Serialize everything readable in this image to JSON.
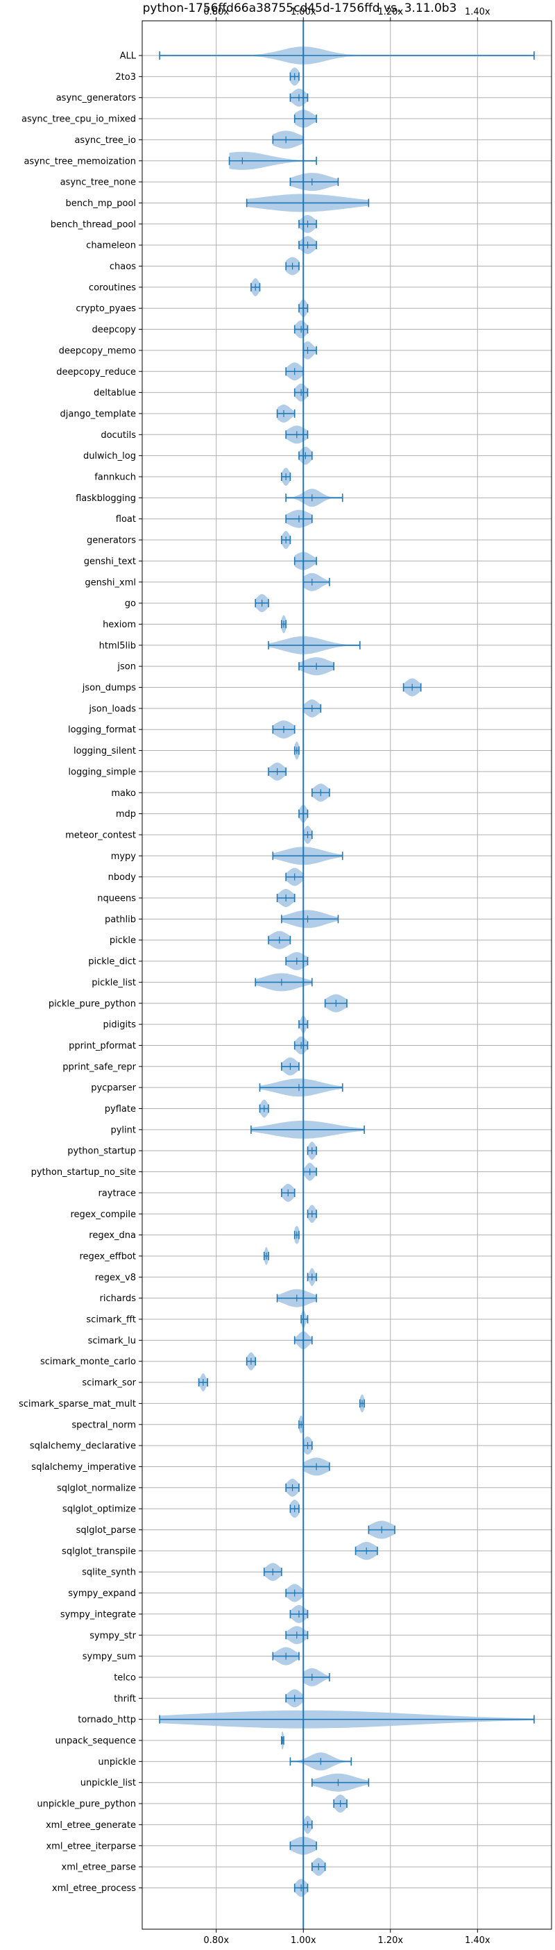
{
  "chart_data": {
    "type": "violin",
    "orientation": "horizontal",
    "title": "python-1756ffd66a38755cd45d-1756ffd vs. 3.11.0b3",
    "xlabel": "",
    "ylabel": "",
    "xlim": [
      0.63,
      1.57
    ],
    "x_ticks": [
      0.8,
      1.0,
      1.2,
      1.4
    ],
    "x_tick_labels": [
      "0.80x",
      "1.00x",
      "1.20x",
      "1.40x"
    ],
    "x_ticks_top_and_bottom": true,
    "grid": true,
    "reference_line_x": 1.0,
    "colors": {
      "violin_fill": "#a9c8e4",
      "line": "#1f77b4",
      "grid": "#b0b0b0"
    },
    "benchmarks": [
      {
        "name": "ALL",
        "min": 0.67,
        "max": 1.53,
        "median": 1.0,
        "spread": 0.05
      },
      {
        "name": "2to3",
        "min": 0.97,
        "max": 0.99,
        "median": 0.98,
        "spread": 0.01
      },
      {
        "name": "async_generators",
        "min": 0.97,
        "max": 1.01,
        "median": 0.99,
        "spread": 0.015
      },
      {
        "name": "async_tree_cpu_io_mixed",
        "min": 0.98,
        "max": 1.03,
        "median": 1.0,
        "spread": 0.02
      },
      {
        "name": "async_tree_io",
        "min": 0.93,
        "max": 1.0,
        "median": 0.96,
        "spread": 0.03
      },
      {
        "name": "async_tree_memoization",
        "min": 0.83,
        "max": 1.03,
        "median": 0.86,
        "spread": 0.06
      },
      {
        "name": "async_tree_none",
        "min": 0.97,
        "max": 1.08,
        "median": 1.02,
        "spread": 0.04
      },
      {
        "name": "bench_mp_pool",
        "min": 0.87,
        "max": 1.15,
        "median": 1.0,
        "spread": 0.1
      },
      {
        "name": "bench_thread_pool",
        "min": 0.99,
        "max": 1.03,
        "median": 1.01,
        "spread": 0.015
      },
      {
        "name": "chameleon",
        "min": 0.99,
        "max": 1.03,
        "median": 1.01,
        "spread": 0.015
      },
      {
        "name": "chaos",
        "min": 0.96,
        "max": 0.99,
        "median": 0.975,
        "spread": 0.015
      },
      {
        "name": "coroutines",
        "min": 0.88,
        "max": 0.9,
        "median": 0.89,
        "spread": 0.008
      },
      {
        "name": "crypto_pyaes",
        "min": 0.99,
        "max": 1.01,
        "median": 1.0,
        "spread": 0.008
      },
      {
        "name": "deepcopy",
        "min": 0.98,
        "max": 1.01,
        "median": 0.995,
        "spread": 0.012
      },
      {
        "name": "deepcopy_memo",
        "min": 1.0,
        "max": 1.03,
        "median": 1.01,
        "spread": 0.012
      },
      {
        "name": "deepcopy_reduce",
        "min": 0.96,
        "max": 1.0,
        "median": 0.98,
        "spread": 0.015
      },
      {
        "name": "deltablue",
        "min": 0.98,
        "max": 1.01,
        "median": 0.995,
        "spread": 0.012
      },
      {
        "name": "django_template",
        "min": 0.94,
        "max": 0.98,
        "median": 0.955,
        "spread": 0.015
      },
      {
        "name": "docutils",
        "min": 0.96,
        "max": 1.01,
        "median": 0.985,
        "spread": 0.02
      },
      {
        "name": "dulwich_log",
        "min": 0.99,
        "max": 1.02,
        "median": 1.005,
        "spread": 0.012
      },
      {
        "name": "fannkuch",
        "min": 0.95,
        "max": 0.97,
        "median": 0.96,
        "spread": 0.008
      },
      {
        "name": "flaskblogging",
        "min": 0.96,
        "max": 1.09,
        "median": 1.02,
        "spread": 0.02
      },
      {
        "name": "float",
        "min": 0.96,
        "max": 1.02,
        "median": 0.99,
        "spread": 0.025
      },
      {
        "name": "generators",
        "min": 0.95,
        "max": 0.97,
        "median": 0.96,
        "spread": 0.008
      },
      {
        "name": "genshi_text",
        "min": 0.98,
        "max": 1.03,
        "median": 1.0,
        "spread": 0.02
      },
      {
        "name": "genshi_xml",
        "min": 1.0,
        "max": 1.06,
        "median": 1.02,
        "spread": 0.02
      },
      {
        "name": "go",
        "min": 0.89,
        "max": 0.92,
        "median": 0.905,
        "spread": 0.012
      },
      {
        "name": "hexiom",
        "min": 0.95,
        "max": 0.96,
        "median": 0.955,
        "spread": 0.005
      },
      {
        "name": "html5lib",
        "min": 0.92,
        "max": 1.13,
        "median": 1.0,
        "spread": 0.045
      },
      {
        "name": "json",
        "min": 0.99,
        "max": 1.07,
        "median": 1.03,
        "spread": 0.03
      },
      {
        "name": "json_dumps",
        "min": 1.23,
        "max": 1.27,
        "median": 1.25,
        "spread": 0.015
      },
      {
        "name": "json_loads",
        "min": 1.0,
        "max": 1.04,
        "median": 1.02,
        "spread": 0.015
      },
      {
        "name": "logging_format",
        "min": 0.93,
        "max": 0.98,
        "median": 0.955,
        "spread": 0.02
      },
      {
        "name": "logging_silent",
        "min": 0.98,
        "max": 0.99,
        "median": 0.985,
        "spread": 0.005
      },
      {
        "name": "logging_simple",
        "min": 0.92,
        "max": 0.96,
        "median": 0.94,
        "spread": 0.015
      },
      {
        "name": "mako",
        "min": 1.02,
        "max": 1.06,
        "median": 1.04,
        "spread": 0.015
      },
      {
        "name": "mdp",
        "min": 0.99,
        "max": 1.01,
        "median": 1.0,
        "spread": 0.008
      },
      {
        "name": "meteor_contest",
        "min": 1.0,
        "max": 1.02,
        "median": 1.01,
        "spread": 0.008
      },
      {
        "name": "mypy",
        "min": 0.93,
        "max": 1.09,
        "median": 1.0,
        "spread": 0.045
      },
      {
        "name": "nbody",
        "min": 0.96,
        "max": 1.0,
        "median": 0.98,
        "spread": 0.015
      },
      {
        "name": "nqueens",
        "min": 0.94,
        "max": 0.98,
        "median": 0.96,
        "spread": 0.015
      },
      {
        "name": "pathlib",
        "min": 0.95,
        "max": 1.08,
        "median": 1.01,
        "spread": 0.04
      },
      {
        "name": "pickle",
        "min": 0.92,
        "max": 0.97,
        "median": 0.945,
        "spread": 0.02
      },
      {
        "name": "pickle_dict",
        "min": 0.96,
        "max": 1.01,
        "median": 0.985,
        "spread": 0.02
      },
      {
        "name": "pickle_list",
        "min": 0.89,
        "max": 1.02,
        "median": 0.95,
        "spread": 0.04
      },
      {
        "name": "pickle_pure_python",
        "min": 1.05,
        "max": 1.1,
        "median": 1.075,
        "spread": 0.02
      },
      {
        "name": "pidigits",
        "min": 0.99,
        "max": 1.01,
        "median": 1.0,
        "spread": 0.006
      },
      {
        "name": "pprint_pformat",
        "min": 0.98,
        "max": 1.01,
        "median": 0.995,
        "spread": 0.012
      },
      {
        "name": "pprint_safe_repr",
        "min": 0.95,
        "max": 0.99,
        "median": 0.97,
        "spread": 0.015
      },
      {
        "name": "pycparser",
        "min": 0.9,
        "max": 1.09,
        "median": 0.99,
        "spread": 0.05
      },
      {
        "name": "pyflate",
        "min": 0.9,
        "max": 0.92,
        "median": 0.91,
        "spread": 0.008
      },
      {
        "name": "pylint",
        "min": 0.88,
        "max": 1.14,
        "median": 1.0,
        "spread": 0.07
      },
      {
        "name": "python_startup",
        "min": 1.01,
        "max": 1.03,
        "median": 1.02,
        "spread": 0.008
      },
      {
        "name": "python_startup_no_site",
        "min": 1.0,
        "max": 1.03,
        "median": 1.015,
        "spread": 0.01
      },
      {
        "name": "raytrace",
        "min": 0.95,
        "max": 0.98,
        "median": 0.965,
        "spread": 0.012
      },
      {
        "name": "regex_compile",
        "min": 1.01,
        "max": 1.03,
        "median": 1.02,
        "spread": 0.008
      },
      {
        "name": "regex_dna",
        "min": 0.98,
        "max": 0.99,
        "median": 0.985,
        "spread": 0.006
      },
      {
        "name": "regex_effbot",
        "min": 0.91,
        "max": 0.92,
        "median": 0.915,
        "spread": 0.004
      },
      {
        "name": "regex_v8",
        "min": 1.01,
        "max": 1.03,
        "median": 1.02,
        "spread": 0.006
      },
      {
        "name": "richards",
        "min": 0.94,
        "max": 1.03,
        "median": 0.985,
        "spread": 0.03
      },
      {
        "name": "scimark_fft",
        "min": 0.995,
        "max": 1.01,
        "median": 1.0,
        "spread": 0.005
      },
      {
        "name": "scimark_lu",
        "min": 0.98,
        "max": 1.02,
        "median": 1.0,
        "spread": 0.012
      },
      {
        "name": "scimark_monte_carlo",
        "min": 0.87,
        "max": 0.89,
        "median": 0.88,
        "spread": 0.008
      },
      {
        "name": "scimark_sor",
        "min": 0.76,
        "max": 0.78,
        "median": 0.77,
        "spread": 0.006
      },
      {
        "name": "scimark_sparse_mat_mult",
        "min": 1.13,
        "max": 1.14,
        "median": 1.135,
        "spread": 0.005
      },
      {
        "name": "spectral_norm",
        "min": 0.99,
        "max": 1.0,
        "median": 0.995,
        "spread": 0.005
      },
      {
        "name": "sqlalchemy_declarative",
        "min": 1.0,
        "max": 1.02,
        "median": 1.01,
        "spread": 0.01
      },
      {
        "name": "sqlalchemy_imperative",
        "min": 1.0,
        "max": 1.06,
        "median": 1.03,
        "spread": 0.025
      },
      {
        "name": "sqlglot_normalize",
        "min": 0.96,
        "max": 0.99,
        "median": 0.975,
        "spread": 0.012
      },
      {
        "name": "sqlglot_optimize",
        "min": 0.97,
        "max": 0.99,
        "median": 0.98,
        "spread": 0.01
      },
      {
        "name": "sqlglot_parse",
        "min": 1.15,
        "max": 1.21,
        "median": 1.18,
        "spread": 0.025
      },
      {
        "name": "sqlglot_transpile",
        "min": 1.12,
        "max": 1.17,
        "median": 1.145,
        "spread": 0.02
      },
      {
        "name": "sqlite_synth",
        "min": 0.91,
        "max": 0.95,
        "median": 0.93,
        "spread": 0.015
      },
      {
        "name": "sympy_expand",
        "min": 0.96,
        "max": 1.0,
        "median": 0.98,
        "spread": 0.015
      },
      {
        "name": "sympy_integrate",
        "min": 0.97,
        "max": 1.01,
        "median": 0.99,
        "spread": 0.015
      },
      {
        "name": "sympy_str",
        "min": 0.96,
        "max": 1.01,
        "median": 0.985,
        "spread": 0.018
      },
      {
        "name": "sympy_sum",
        "min": 0.93,
        "max": 0.99,
        "median": 0.96,
        "spread": 0.02
      },
      {
        "name": "telco",
        "min": 1.0,
        "max": 1.06,
        "median": 1.02,
        "spread": 0.02
      },
      {
        "name": "thrift",
        "min": 0.96,
        "max": 1.0,
        "median": 0.98,
        "spread": 0.015
      },
      {
        "name": "tornado_http",
        "min": 0.67,
        "max": 1.53,
        "median": 1.0,
        "spread": 0.25
      },
      {
        "name": "unpack_sequence",
        "min": 0.95,
        "max": 0.955,
        "median": 0.952,
        "spread": 0.003
      },
      {
        "name": "unpickle",
        "min": 0.97,
        "max": 1.11,
        "median": 1.04,
        "spread": 0.025
      },
      {
        "name": "unpickle_list",
        "min": 1.02,
        "max": 1.15,
        "median": 1.08,
        "spread": 0.04
      },
      {
        "name": "unpickle_pure_python",
        "min": 1.07,
        "max": 1.1,
        "median": 1.085,
        "spread": 0.012
      },
      {
        "name": "xml_etree_generate",
        "min": 1.0,
        "max": 1.02,
        "median": 1.01,
        "spread": 0.008
      },
      {
        "name": "xml_etree_iterparse",
        "min": 0.97,
        "max": 1.03,
        "median": 1.0,
        "spread": 0.025
      },
      {
        "name": "xml_etree_parse",
        "min": 1.02,
        "max": 1.05,
        "median": 1.035,
        "spread": 0.012
      },
      {
        "name": "xml_etree_process",
        "min": 0.98,
        "max": 1.01,
        "median": 0.995,
        "spread": 0.012
      }
    ]
  }
}
